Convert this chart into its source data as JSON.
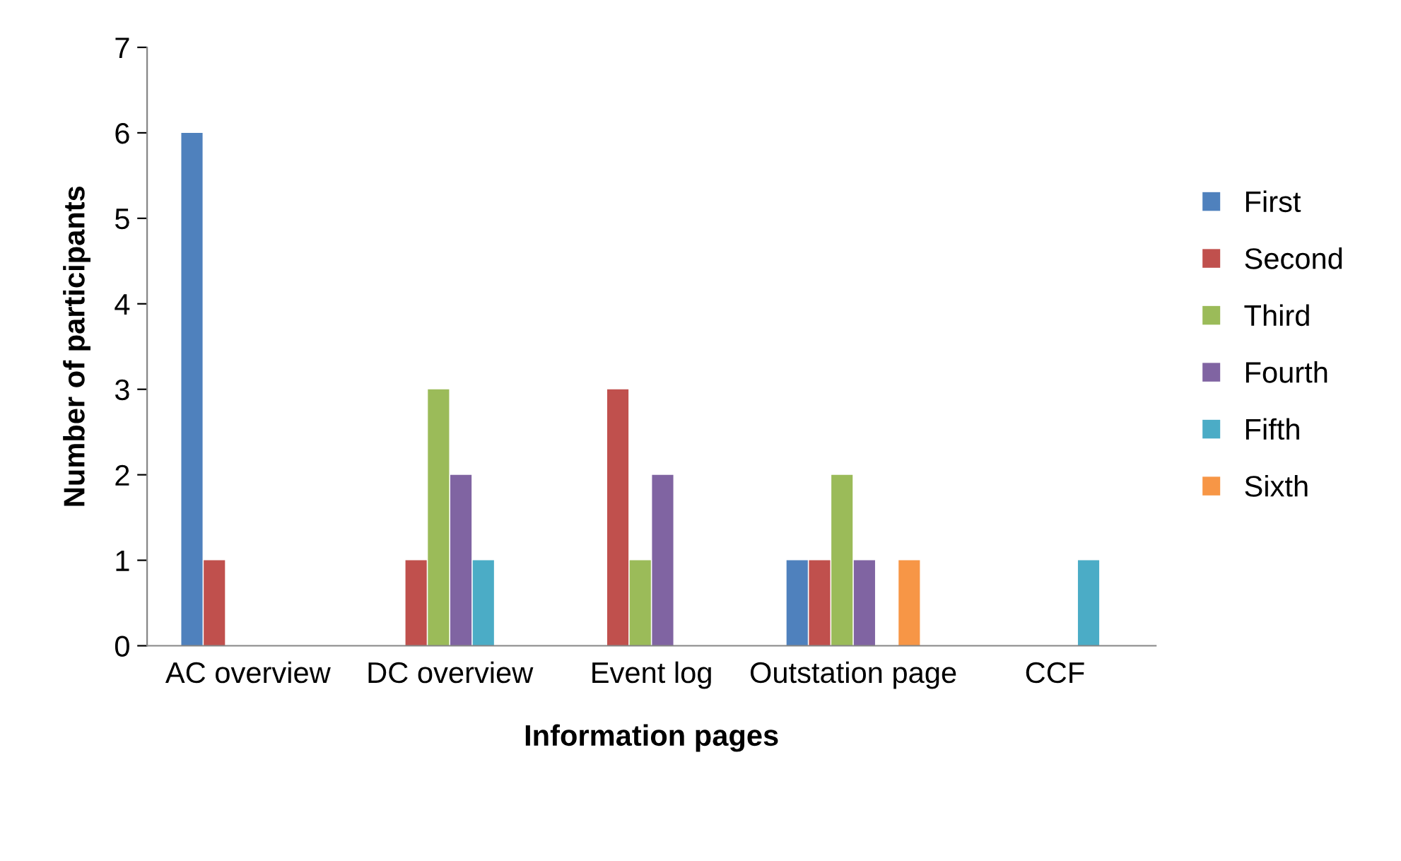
{
  "chart_data": {
    "type": "bar",
    "xlabel": "Information pages",
    "ylabel": "Number of participants",
    "categories": [
      "AC overview",
      "DC overview",
      "Event log",
      "Outstation page",
      "CCF"
    ],
    "series": [
      {
        "name": "First",
        "color": "#4f81bd",
        "values": [
          6,
          0,
          0,
          1,
          0
        ]
      },
      {
        "name": "Second",
        "color": "#c0504d",
        "values": [
          1,
          1,
          3,
          1,
          0
        ]
      },
      {
        "name": "Third",
        "color": "#9bbb59",
        "values": [
          0,
          3,
          1,
          2,
          0
        ]
      },
      {
        "name": "Fourth",
        "color": "#8064a2",
        "values": [
          0,
          2,
          2,
          1,
          0
        ]
      },
      {
        "name": "Fifth",
        "color": "#4bacc6",
        "values": [
          0,
          1,
          0,
          0,
          1
        ]
      },
      {
        "name": "Sixth",
        "color": "#f79646",
        "values": [
          0,
          0,
          0,
          1,
          0
        ]
      }
    ],
    "ylim": [
      0,
      7
    ],
    "yticks": [
      0,
      1,
      2,
      3,
      4,
      5,
      6,
      7
    ],
    "grid": false,
    "legend": "right"
  }
}
